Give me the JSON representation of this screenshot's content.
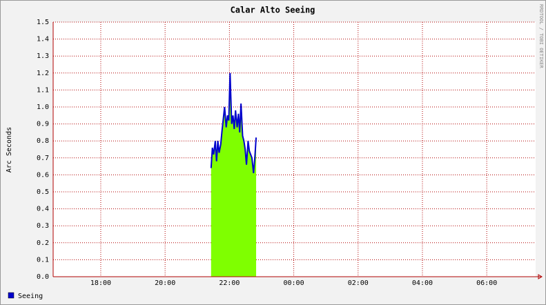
{
  "chart_data": {
    "type": "area",
    "title": "Calar Alto Seeing",
    "y_label": "Arc Seconds",
    "watermark": "RRDTOOL / TOBI OETIKER",
    "x": [
      21.43,
      21.47,
      21.51,
      21.56,
      21.6,
      21.64,
      21.68,
      21.73,
      21.77,
      21.81,
      21.85,
      21.9,
      21.94,
      21.98,
      22.02,
      22.07,
      22.11,
      22.15,
      22.19,
      22.24,
      22.28,
      22.32,
      22.36,
      22.41,
      22.45,
      22.49,
      22.53,
      22.58,
      22.62,
      22.66,
      22.7,
      22.75,
      22.79,
      22.83
    ],
    "series": [
      {
        "name": "Seeing",
        "color": "#0000cc",
        "fill": "#7fff00",
        "values": [
          0.64,
          0.76,
          0.72,
          0.8,
          0.68,
          0.8,
          0.73,
          0.78,
          0.86,
          0.93,
          1.0,
          0.88,
          0.95,
          0.92,
          1.2,
          0.9,
          0.95,
          0.87,
          0.98,
          0.88,
          0.96,
          0.85,
          1.02,
          0.83,
          0.8,
          0.75,
          0.66,
          0.8,
          0.74,
          0.72,
          0.7,
          0.61,
          0.7,
          0.82
        ]
      }
    ],
    "xlim": [
      16.52,
      31.52
    ],
    "xticks": [
      {
        "value": 18,
        "label": "18:00"
      },
      {
        "value": 20,
        "label": "20:00"
      },
      {
        "value": 22,
        "label": "22:00"
      },
      {
        "value": 24,
        "label": "00:00"
      },
      {
        "value": 26,
        "label": "02:00"
      },
      {
        "value": 28,
        "label": "04:00"
      },
      {
        "value": 30,
        "label": "06:00"
      }
    ],
    "ylim": [
      0,
      1.5
    ],
    "yticks": [
      {
        "value": 0,
        "label": "0.0"
      },
      0.1,
      0.2,
      0.3,
      0.4,
      0.5,
      0.6,
      0.7,
      0.8,
      0.9,
      {
        "value": 1,
        "label": "1.0"
      },
      1.1,
      1.2,
      1.3,
      1.4,
      1.5
    ],
    "grid": true
  }
}
